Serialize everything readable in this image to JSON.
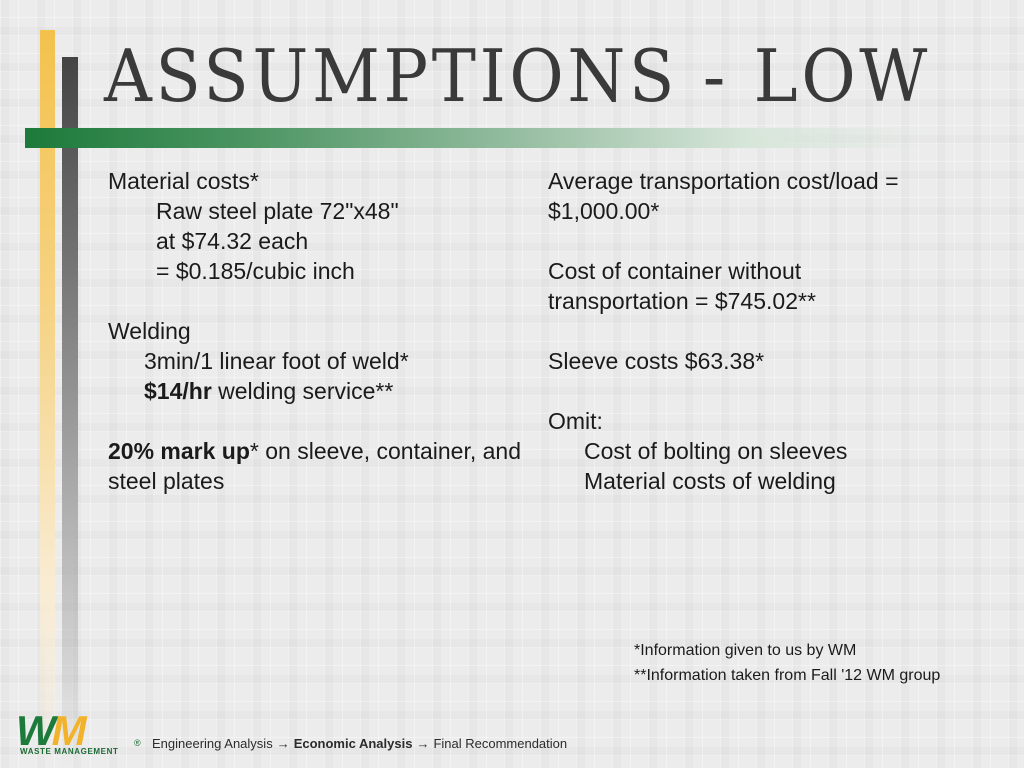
{
  "slide": {
    "title": "ASSUMPTIONS - LOW"
  },
  "left_column": {
    "material_heading": "Material costs*",
    "material_line1": "Raw steel plate 72\"x48\"",
    "material_line2": "at $74.32 each",
    "material_line3": "= $0.185/cubic inch",
    "welding_heading": "Welding",
    "welding_line1": "3min/1 linear foot of weld*",
    "welding_rate_bold": "$14/hr",
    "welding_rate_rest": " welding service**",
    "markup_bold": "20% mark up",
    "markup_rest": "* on sleeve, container, and steel plates"
  },
  "right_column": {
    "transport_line1": "Average transportation cost/load =",
    "transport_line2": "$1,000.00*",
    "container_line1": "Cost of container without",
    "container_line2": "transportation = $745.02**",
    "sleeve_line": "Sleeve costs $63.38*",
    "omit_heading": "Omit:",
    "omit_item1": "Cost of bolting on sleeves",
    "omit_item2": "Material costs of welding"
  },
  "footnotes": {
    "note1": "*Information given to us by WM",
    "note2": "**Information taken from Fall '12 WM group"
  },
  "logo": {
    "mark_w": "W",
    "mark_m": "M",
    "company": "WASTE MANAGEMENT",
    "registered": "®"
  },
  "breadcrumb": {
    "step1": "Engineering Analysis",
    "arrow": "→",
    "step2": "Economic Analysis",
    "step3": "Final Recommendation"
  },
  "colors": {
    "accent_green": "#1c7a3a",
    "accent_yellow": "#f3c24c",
    "title_gray": "#3a3a3a"
  }
}
